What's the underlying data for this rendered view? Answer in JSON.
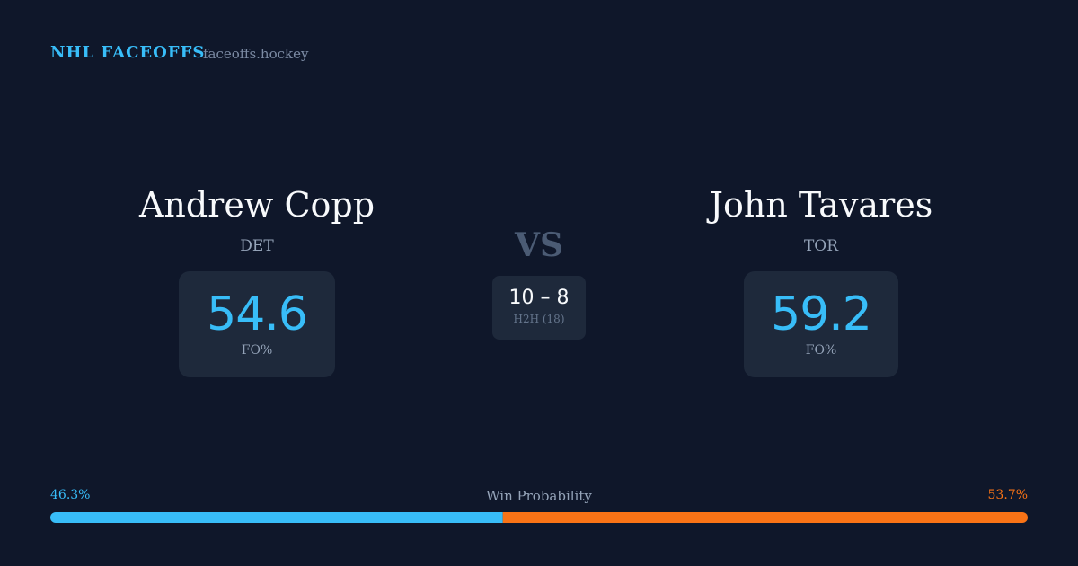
{
  "header": {
    "brand": "NHL FACEOFFS",
    "site": "faceoffs.hockey"
  },
  "players": [
    {
      "name": "Andrew Copp",
      "team": "DET",
      "fo_pct": 54.6,
      "fo_label": "FO%"
    },
    {
      "name": "John Tavares",
      "team": "TOR",
      "fo_pct": 59.2,
      "fo_label": "FO%"
    }
  ],
  "versus": {
    "label": "VS",
    "h2h_score": "10 – 8",
    "h2h_label": "H2H (18)"
  },
  "win_probability": {
    "title": "Win Probability",
    "left": {
      "value": 46.3,
      "label": "46.3%",
      "color": "#38bdf8"
    },
    "right": {
      "value": 53.7,
      "label": "53.7%",
      "color": "#f97316"
    }
  }
}
